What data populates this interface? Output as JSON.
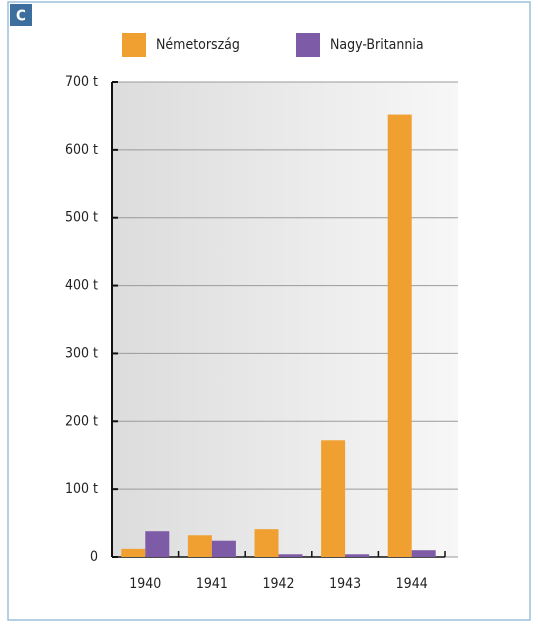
{
  "panel_label": "C",
  "chart_data": {
    "type": "bar",
    "categories": [
      "1940",
      "1941",
      "1942",
      "1943",
      "1944"
    ],
    "series": [
      {
        "name": "Németország",
        "color": "#f0a030",
        "values": [
          12,
          32,
          41,
          172,
          652
        ]
      },
      {
        "name": "Nagy-Britannia",
        "color": "#7d5ba6",
        "values": [
          38,
          24,
          4,
          4,
          10
        ]
      }
    ],
    "ylim": [
      0,
      700
    ],
    "yticks": [
      0,
      {
        "value": 100,
        "label": "100 t"
      },
      {
        "value": 200,
        "label": "200 t"
      },
      {
        "value": 300,
        "label": "300 t"
      },
      {
        "value": 400,
        "label": "400 t"
      },
      {
        "value": 500,
        "label": "500 t"
      },
      {
        "value": 600,
        "label": "600 t"
      },
      {
        "value": 700,
        "label": "700 t"
      }
    ],
    "grid": true,
    "legend": "top"
  }
}
